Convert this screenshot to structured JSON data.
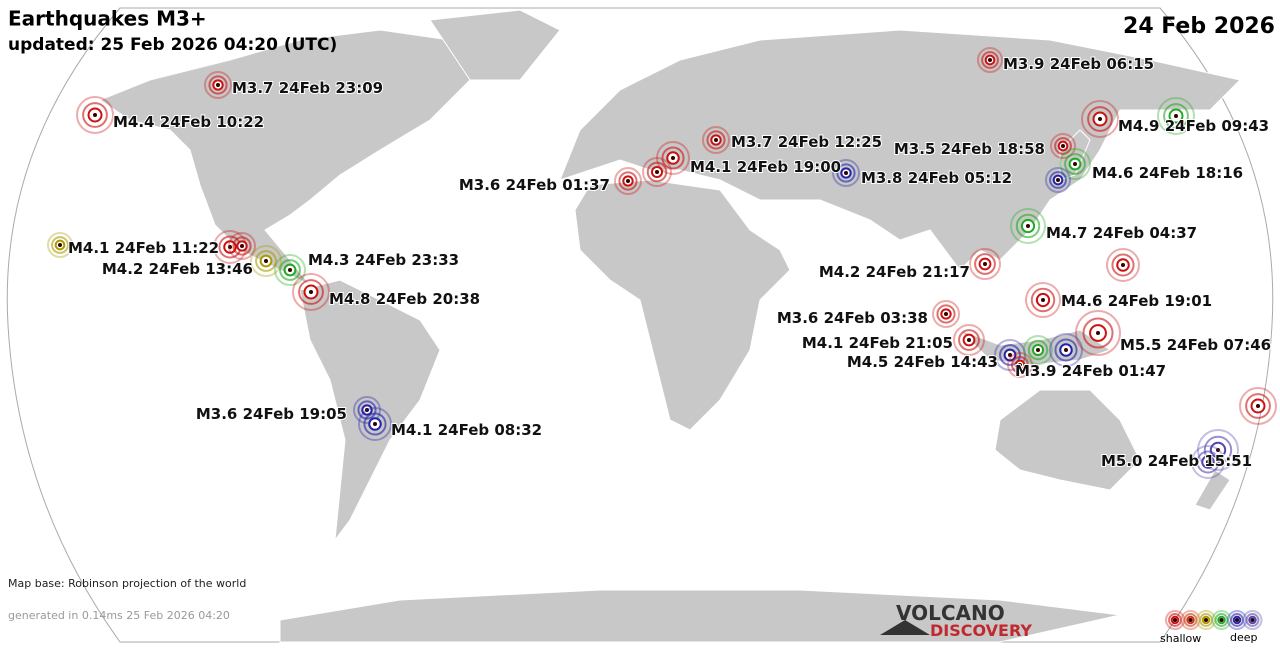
{
  "header": {
    "title": "Earthquakes M3+",
    "updated": "updated: 25 Feb 2026 04:20 (UTC)",
    "date": "24 Feb 2026"
  },
  "quakes": [
    {
      "label": "M3.9 24Feb 06:15",
      "color": "#cc1111"
    },
    {
      "label": "M3.7 24Feb 23:09",
      "color": "#cc1111"
    },
    {
      "label": "M4.4 24Feb 10:22",
      "color": "#cc1111"
    },
    {
      "label": "M4.9 24Feb 09:43",
      "color": "#cc1111"
    },
    {
      "color": "#22aa22"
    },
    {
      "label": "M3.7 24Feb 12:25",
      "color": "#cc1111"
    },
    {
      "label": "M3.5 24Feb 18:58",
      "color": "#cc1111"
    },
    {
      "label": "M4.6 24Feb 18:16",
      "color": "#22aa22"
    },
    {
      "color": "#2222aa"
    },
    {
      "label": "M4.1 24Feb 19:00",
      "color": "#cc1111"
    },
    {
      "label": "M3.8 24Feb 05:12",
      "color": "#2222aa"
    },
    {
      "label": "M3.6 24Feb 01:37",
      "color": "#cc1111"
    },
    {
      "color": "#cc1111"
    },
    {
      "label": "M4.7 24Feb 04:37",
      "color": "#22aa22"
    },
    {
      "label": "M4.1 24Feb 11:22",
      "color": "#aa9900"
    },
    {
      "label": "M4.2 24Feb 13:46",
      "color": "#cc1111"
    },
    {
      "color": "#cc1111"
    },
    {
      "label": "M4.3 24Feb 23:33",
      "color": "#22aa22"
    },
    {
      "color": "#aa9900"
    },
    {
      "label": "M4.8 24Feb 20:38",
      "color": "#cc1111"
    },
    {
      "label": "M4.2 24Feb 21:17",
      "color": "#cc1111"
    },
    {
      "color": "#cc1111"
    },
    {
      "label": "M4.6 24Feb 19:01",
      "color": "#cc1111"
    },
    {
      "label": "M3.6 24Feb 03:38",
      "color": "#cc1111"
    },
    {
      "label": "M4.1 24Feb 21:05",
      "color": "#cc1111"
    },
    {
      "label": "M5.5 24Feb 07:46",
      "color": "#cc1111"
    },
    {
      "label": "M4.5 24Feb 14:43",
      "color": "#2222aa"
    },
    {
      "color": "#cc1111"
    },
    {
      "label": "M3.9 24Feb 01:47",
      "color": "#22aa22"
    },
    {
      "color": "#2222aa"
    },
    {
      "label": "M3.6 24Feb 19:05",
      "color": "#2222aa"
    },
    {
      "label": "M4.1 24Feb 08:32",
      "color": "#2222aa"
    },
    {
      "label": "M5.0 24Feb 15:51",
      "color": "#5544aa"
    },
    {
      "color": "#5544aa"
    },
    {
      "color": "#cc1111"
    }
  ],
  "footer": {
    "map_base": "Map base: Robinson projection of the world",
    "generated": "generated in 0.14ms 25 Feb 2026 04:20",
    "logo_top": "VOLCANO",
    "logo_bottom": "DISCOVERY",
    "legend_shallow": "shallow",
    "legend_deep": "deep"
  }
}
